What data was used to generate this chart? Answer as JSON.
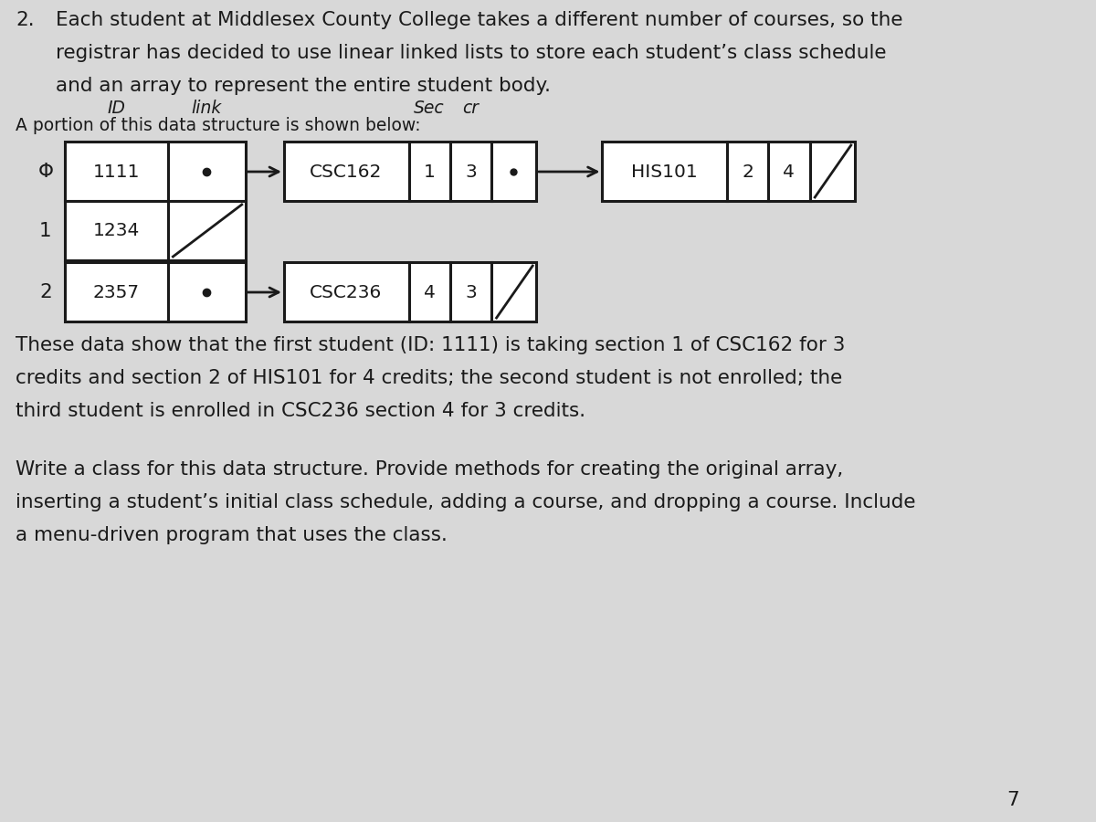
{
  "bg_color": "#d8d8d8",
  "text_color": "#1a1a1a",
  "title_num": "2.",
  "p1_line1": "Each student at Middlesex County College takes a different number of courses, so the",
  "p1_line2": "registrar has decided to use linear linked lists to store each student’s class schedule",
  "p1_line3": "and an array to represent the entire student body.",
  "subheading": "A portion of this data structure is shown below:",
  "hdr_id": "ID",
  "hdr_link": "link",
  "hdr_sec": "Sec",
  "hdr_cr": "cr",
  "row0_idx": "Φ",
  "row0_id": "1111",
  "row0_link_null": false,
  "row1_idx": "1",
  "row1_id": "1234",
  "row1_link_null": true,
  "row2_idx": "2",
  "row2_id": "2357",
  "row2_link_null": false,
  "n1_course": "CSC162",
  "n1_sec": "1",
  "n1_cr": "3",
  "n1_has_next": true,
  "n2_course": "HIS101",
  "n2_sec": "2",
  "n2_cr": "4",
  "n2_has_next": false,
  "n3_course": "CSC236",
  "n3_sec": "4",
  "n3_cr": "3",
  "n3_has_next": false,
  "p2_line1": "These data show that the first student (ID: 1111) is taking section 1 of CSC162 for 3",
  "p2_line2": "credits and section 2 of HIS101 for 4 credits; the second student is not enrolled; the",
  "p2_line3": "third student is enrolled in CSC236 section 4 for 3 credits.",
  "p3_line1": "Write a class for this data structure. Provide methods for creating the original array,",
  "p3_line2": "inserting a student’s initial class schedule, adding a course, and dropping a course. Include",
  "p3_line3": "a menu-driven program that uses the class.",
  "page_num": "7",
  "font_size_body": 15.5,
  "font_size_diagram": 14.5,
  "font_size_hdr": 13.5
}
